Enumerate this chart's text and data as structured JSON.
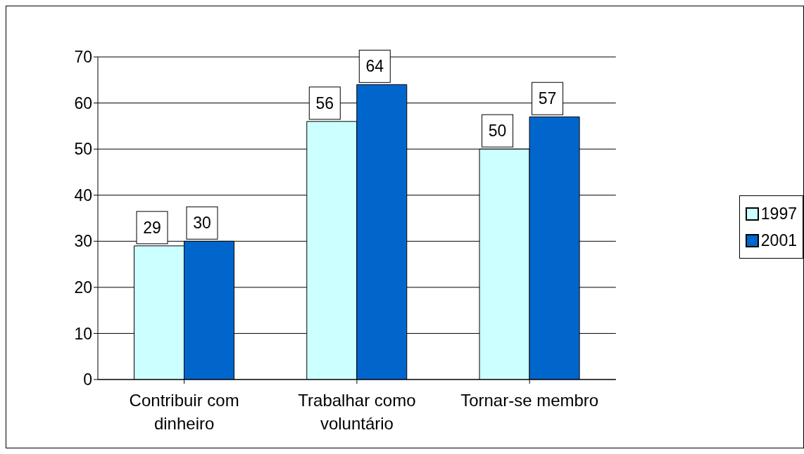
{
  "chart_data": {
    "type": "bar",
    "categories": [
      "Contribuir com dinheiro",
      "Trabalhar como voluntário",
      "Tornar-se membro"
    ],
    "series": [
      {
        "name": "1997",
        "color": "#ccffff",
        "values": [
          29,
          56,
          50
        ]
      },
      {
        "name": "2001",
        "color": "#0066cc",
        "values": [
          30,
          64,
          57
        ]
      }
    ],
    "ylim": [
      0,
      70
    ],
    "yticks": [
      0,
      10,
      20,
      30,
      40,
      50,
      60,
      70
    ],
    "grid": "y",
    "legend": "right",
    "data_labels": true
  }
}
